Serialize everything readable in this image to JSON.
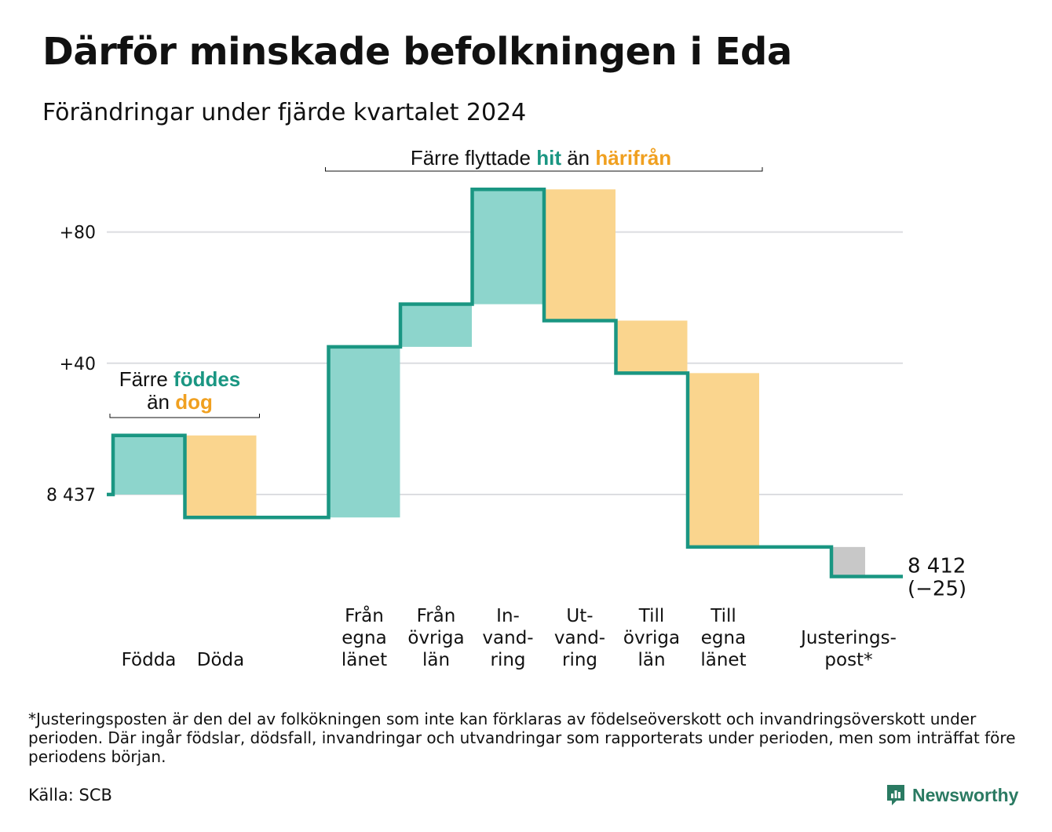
{
  "title": "Därför minskade befolkningen i Eda",
  "subtitle": "Förändringar under fjärde kvartalet 2024",
  "colors": {
    "inflow": "#8dd5cc",
    "outflow": "#fad58e",
    "adjustment": "#c8c8c8",
    "line": "#1a9682",
    "inflow_text": "#1a9682",
    "outflow_text": "#f0a020",
    "grid": "#dcdde1"
  },
  "chart_data": {
    "type": "waterfall",
    "start_value": 8437,
    "start_label": "8 437",
    "end_value": 8412,
    "end_label": "8 412",
    "end_change_label": "(−25)",
    "y_ticks": [
      {
        "value": 0,
        "label": "8 437"
      },
      {
        "value": 40,
        "label": "+40"
      },
      {
        "value": 80,
        "label": "+80"
      }
    ],
    "ylim": [
      -30,
      93
    ],
    "steps": [
      {
        "key": "fodda",
        "label_lines": [
          "Födda"
        ],
        "delta": 18,
        "kind": "inflow"
      },
      {
        "key": "doda",
        "label_lines": [
          "Döda"
        ],
        "delta": -25,
        "kind": "outflow"
      },
      {
        "key": "gap",
        "label_lines": [],
        "delta": 0,
        "kind": "spacer"
      },
      {
        "key": "fran-egna-lanet",
        "label_lines": [
          "Från",
          "egna",
          "länet"
        ],
        "delta": 52,
        "kind": "inflow"
      },
      {
        "key": "fran-ovriga-lan",
        "label_lines": [
          "Från",
          "övriga",
          "län"
        ],
        "delta": 13,
        "kind": "inflow"
      },
      {
        "key": "invandring",
        "label_lines": [
          "In-",
          "vand-",
          "ring"
        ],
        "delta": 35,
        "kind": "inflow"
      },
      {
        "key": "utvandring",
        "label_lines": [
          "Ut-",
          "vand-",
          "ring"
        ],
        "delta": -40,
        "kind": "outflow"
      },
      {
        "key": "till-ovriga-lan",
        "label_lines": [
          "Till",
          "övriga",
          "län"
        ],
        "delta": -16,
        "kind": "outflow"
      },
      {
        "key": "till-egna-lanet",
        "label_lines": [
          "Till",
          "egna",
          "länet"
        ],
        "delta": -53,
        "kind": "outflow"
      },
      {
        "key": "gap2",
        "label_lines": [],
        "delta": 0,
        "kind": "spacer"
      },
      {
        "key": "justeringspost",
        "label_lines": [
          "Justerings-",
          "post*"
        ],
        "delta": -9,
        "kind": "adjustment"
      }
    ],
    "annotations": [
      {
        "key": "births",
        "lines": [
          [
            {
              "text": "Färre ",
              "style": "plain"
            },
            {
              "text": "föddes",
              "style": "inflow"
            }
          ],
          [
            {
              "text": "än ",
              "style": "plain"
            },
            {
              "text": "dog",
              "style": "outflow"
            }
          ]
        ]
      },
      {
        "key": "migration",
        "lines": [
          [
            {
              "text": "Färre flyttade ",
              "style": "plain"
            },
            {
              "text": "hit",
              "style": "inflow"
            },
            {
              "text": " än ",
              "style": "plain"
            },
            {
              "text": "härifrån",
              "style": "outflow"
            }
          ]
        ]
      }
    ]
  },
  "footnote": "*Justeringsposten är den del av folkökningen som inte kan förklaras av födelseöverskott och invandringsöverskott under perioden. Där ingår födslar, dödsfall, invandringar och utvandringar som rapporterats under perioden, men som inträffat före periodens början.",
  "source": "Källa: SCB",
  "brand": {
    "name": "Newsworthy",
    "icon": "newsworthy-logo-icon"
  }
}
